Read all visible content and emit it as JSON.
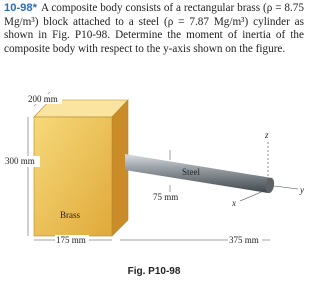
{
  "problem": {
    "number": "10-98*",
    "text": "A composite body consists of a rectangular brass (ρ = 8.75 Mg/m³) block attached to a steel (ρ = 7.87 Mg/m³) cylinder as shown in Fig. P10-98. Determine the moment of inertia of the composite body with respect to the y-axis shown on the figure."
  },
  "figure": {
    "labels": {
      "block_depth": "200 mm",
      "block_height": "300 mm",
      "cylinder_material": "Steel",
      "cylinder_diameter": "75 mm",
      "block_material": "Brass",
      "block_width": "175 mm",
      "cylinder_length": "375 mm",
      "axis_z": "z",
      "axis_x": "x",
      "axis_y": "y"
    },
    "caption": "Fig. P10-98"
  }
}
